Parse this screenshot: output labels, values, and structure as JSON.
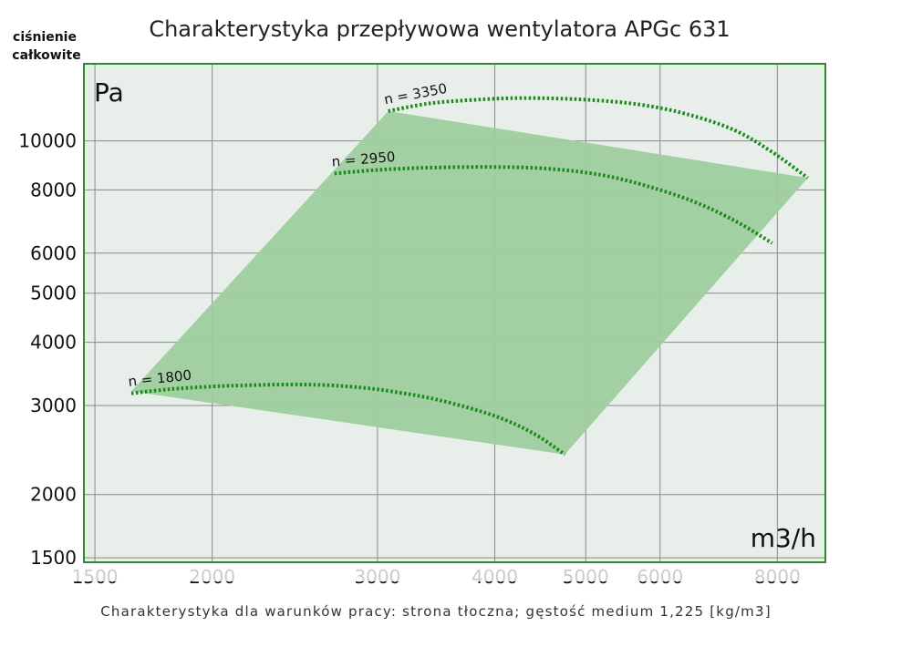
{
  "chart_data": {
    "type": "line",
    "title": "Charakterystyka przepływowa wentylatora APGc 631",
    "ylabel_line1": "ciśnienie",
    "ylabel_line2": "całkowite",
    "y_unit": "Pa",
    "x_unit": "m3/h",
    "footer": "Charakterystyka dla warunków pracy: strona tłoczna; gęstość medium 1,225 [kg/m3]",
    "x_scale": "log",
    "y_scale": "log",
    "xlim": [
      1460,
      9000
    ],
    "ylim": [
      1470,
      14200
    ],
    "x_ticks": [
      {
        "value": 1500,
        "label": "1500"
      },
      {
        "value": 2000,
        "label": "2000"
      },
      {
        "value": 3000,
        "label": "3000"
      },
      {
        "value": 4000,
        "label": "4000"
      },
      {
        "value": 5000,
        "label": "5000"
      },
      {
        "value": 6000,
        "label": "6000"
      },
      {
        "value": 8000,
        "label": "8000"
      }
    ],
    "y_ticks": [
      {
        "value": 1500,
        "label": "1500"
      },
      {
        "value": 2000,
        "label": "2000"
      },
      {
        "value": 3000,
        "label": "3000"
      },
      {
        "value": 4000,
        "label": "4000"
      },
      {
        "value": 5000,
        "label": "5000"
      },
      {
        "value": 6000,
        "label": "6000"
      },
      {
        "value": 8000,
        "label": "8000"
      },
      {
        "value": 10000,
        "label": "10000"
      }
    ],
    "operating_region": {
      "color": "#9ecd9e",
      "polygon": [
        [
          1640,
          3200
        ],
        [
          3080,
          11450
        ],
        [
          8620,
          8450
        ],
        [
          4750,
          2400
        ]
      ]
    },
    "series": [
      {
        "name": "n = 1800",
        "label": "n = 1800",
        "color": "#1a8a1a",
        "x": [
          1640,
          1800,
          2000,
          2200,
          2500,
          2800,
          3100,
          3500,
          4000,
          4400,
          4750
        ],
        "y": [
          3170,
          3230,
          3270,
          3290,
          3300,
          3270,
          3200,
          3070,
          2860,
          2640,
          2400
        ]
      },
      {
        "name": "n = 2950",
        "label": "n = 2950",
        "color": "#1a8a1a",
        "x": [
          2700,
          3000,
          3400,
          4000,
          4600,
          5200,
          5800,
          6500,
          7200,
          7900
        ],
        "y": [
          8620,
          8760,
          8850,
          8880,
          8800,
          8560,
          8150,
          7600,
          6960,
          6280
        ]
      },
      {
        "name": "n = 3350",
        "label": "n = 3350",
        "color": "#1a8a1a",
        "x": [
          3080,
          3400,
          3800,
          4300,
          5000,
          5700,
          6400,
          7200,
          7900,
          8620
        ],
        "y": [
          11450,
          11850,
          12050,
          12150,
          12060,
          11800,
          11300,
          10500,
          9500,
          8450
        ]
      }
    ]
  }
}
